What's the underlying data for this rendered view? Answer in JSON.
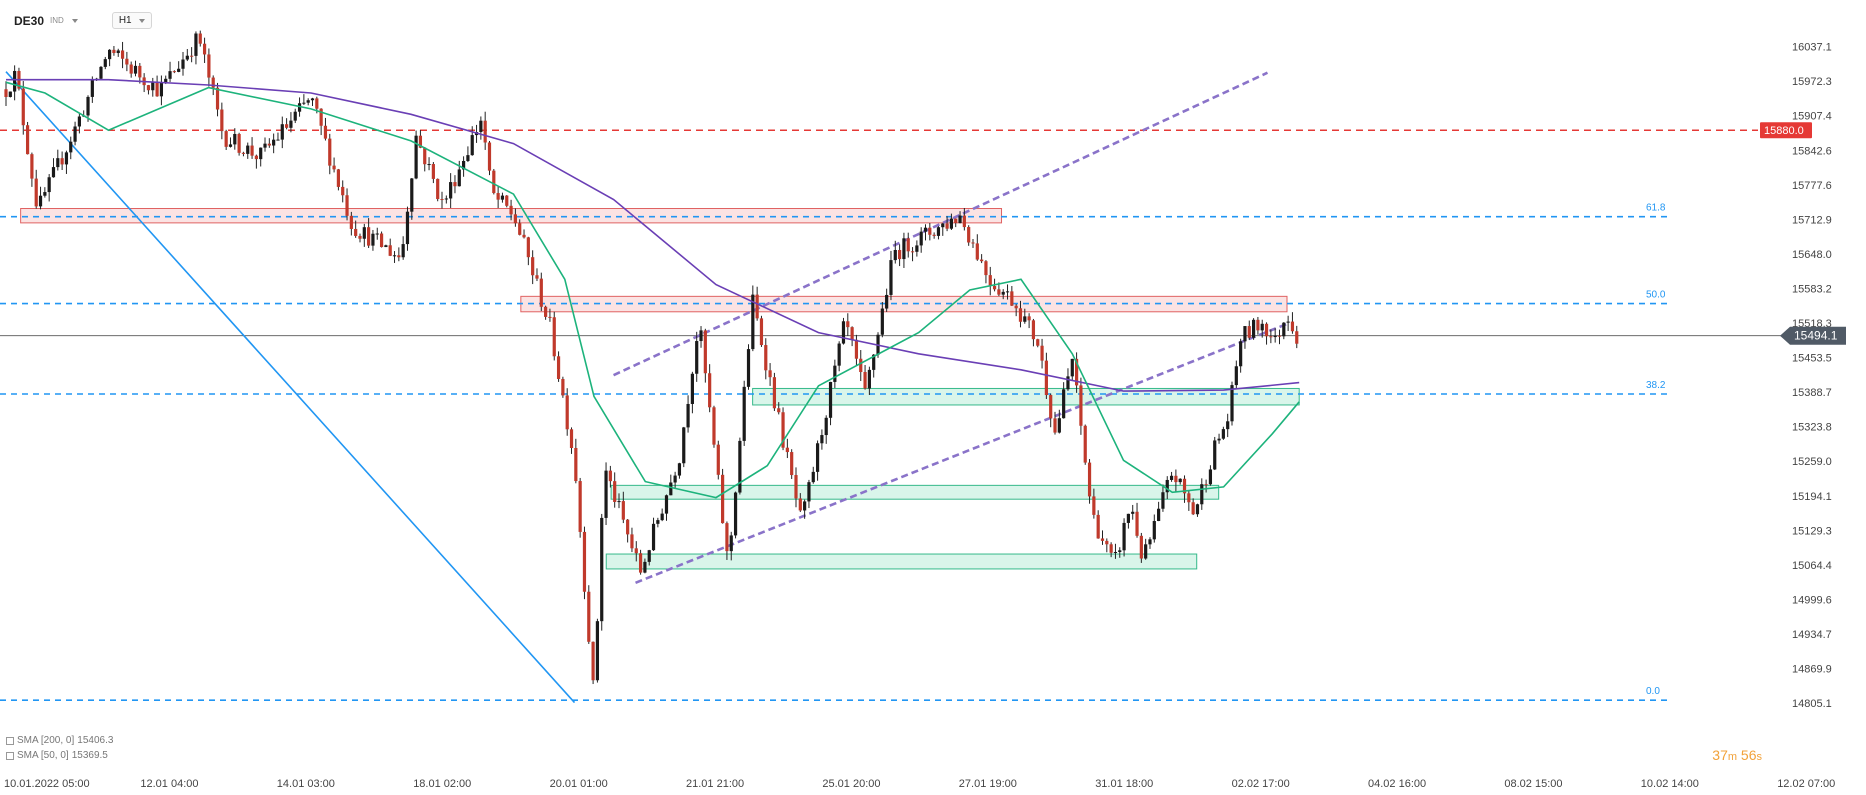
{
  "toolbar": {
    "symbol": "DE30",
    "symbol_type": "IND",
    "timeframe": "H1"
  },
  "indicators": [
    {
      "label": "SMA [200, 0]",
      "value": "15406.3",
      "color": "#6a3fb5"
    },
    {
      "label": "SMA [50, 0]",
      "value": "15369.5",
      "color": "#1db37c"
    }
  ],
  "timer": {
    "min": "37",
    "min_unit": "m",
    "sec": "56",
    "sec_unit": "s"
  },
  "colors": {
    "bull": "#1a1a1a",
    "bear": "#c0392b",
    "resistance_fill": "#fbe3e3",
    "resistance_stroke": "#e06262",
    "support_fill": "#d9f5ea",
    "support_stroke": "#35b98a",
    "fib": "#2196f3",
    "level": "#e53935",
    "channel": "#8a73c9",
    "trend": "#2196f3",
    "sma200": "#6a3fb5",
    "sma50": "#1db37c"
  },
  "chart_data": {
    "type": "candlestick",
    "instrument": "DE30",
    "timeframe": "H1",
    "y_ticks": [
      "16037.1",
      "15972.3",
      "15907.4",
      "15842.6",
      "15777.6",
      "15712.9",
      "15648.0",
      "15583.2",
      "15518.3",
      "15453.5",
      "15388.7",
      "15323.8",
      "15259.0",
      "15194.1",
      "15129.3",
      "15064.4",
      "14999.6",
      "14934.7",
      "14869.9",
      "14805.1"
    ],
    "ylim": [
      14805.1,
      16037.1
    ],
    "x_ticks": [
      "10.01.2022  05:00",
      "12.01  04:00",
      "14.01  03:00",
      "18.01  02:00",
      "20.01  01:00",
      "21.01  21:00",
      "25.01  20:00",
      "27.01  19:00",
      "31.01  18:00",
      "02.02  17:00",
      "04.02  16:00",
      "08.02  15:00",
      "10.02  14:00",
      "12.02  07:00"
    ],
    "last_price": "15494.1",
    "horizontal_level": {
      "value": 15880.0,
      "label": "15880.0"
    },
    "fibonacci": [
      {
        "label": "61.8",
        "value": 15717.6
      },
      {
        "label": "50.0",
        "value": 15554.5
      },
      {
        "label": "38.2",
        "value": 15384.6
      },
      {
        "label": "0.0",
        "value": 14809.5
      }
    ],
    "resistance_zones": [
      {
        "t0": 0.6,
        "t1": 40.8,
        "lo": 15706,
        "hi": 15733
      },
      {
        "t0": 21.1,
        "t1": 52.5,
        "lo": 15539,
        "hi": 15568
      }
    ],
    "support_zones": [
      {
        "t0": 30.6,
        "t1": 53.0,
        "lo": 15364,
        "hi": 15395
      },
      {
        "t0": 24.8,
        "t1": 49.7,
        "lo": 15187,
        "hi": 15213
      },
      {
        "t0": 24.6,
        "t1": 48.8,
        "lo": 15056,
        "hi": 15084
      }
    ],
    "trend_line": {
      "t0": 0.0,
      "p0": 15990,
      "t1": 23.3,
      "p1": 14805
    },
    "channel_lines": [
      {
        "t0": 25.8,
        "p0": 15030,
        "t1": 52.6,
        "p1": 15518
      },
      {
        "t0": 24.9,
        "p0": 15420,
        "t1": 51.7,
        "p1": 15988
      }
    ],
    "key_points": [
      {
        "t": 0.0,
        "p": 15957
      },
      {
        "t": 0.4,
        "p": 15985
      },
      {
        "t": 1.3,
        "p": 15730
      },
      {
        "t": 2.8,
        "p": 15880
      },
      {
        "t": 4.2,
        "p": 16030
      },
      {
        "t": 6.3,
        "p": 15955
      },
      {
        "t": 7.9,
        "p": 16055
      },
      {
        "t": 8.9,
        "p": 15870
      },
      {
        "t": 10.4,
        "p": 15830
      },
      {
        "t": 12.5,
        "p": 15940
      },
      {
        "t": 14.2,
        "p": 15700
      },
      {
        "t": 16.2,
        "p": 15640
      },
      {
        "t": 16.8,
        "p": 15870
      },
      {
        "t": 17.9,
        "p": 15740
      },
      {
        "t": 19.5,
        "p": 15905
      },
      {
        "t": 19.9,
        "p": 15760
      },
      {
        "t": 20.8,
        "p": 15720
      },
      {
        "t": 21.4,
        "p": 15640
      },
      {
        "t": 22.3,
        "p": 15510
      },
      {
        "t": 23.3,
        "p": 15260
      },
      {
        "t": 24.1,
        "p": 14810
      },
      {
        "t": 24.5,
        "p": 15250
      },
      {
        "t": 26.0,
        "p": 15050
      },
      {
        "t": 27.6,
        "p": 15270
      },
      {
        "t": 28.4,
        "p": 15520
      },
      {
        "t": 29.6,
        "p": 15060
      },
      {
        "t": 30.6,
        "p": 15560
      },
      {
        "t": 32.6,
        "p": 15140
      },
      {
        "t": 34.4,
        "p": 15520
      },
      {
        "t": 35.2,
        "p": 15380
      },
      {
        "t": 36.4,
        "p": 15650
      },
      {
        "t": 39.1,
        "p": 15720
      },
      {
        "t": 40.3,
        "p": 15600
      },
      {
        "t": 41.3,
        "p": 15560
      },
      {
        "t": 42.3,
        "p": 15480
      },
      {
        "t": 43.0,
        "p": 15310
      },
      {
        "t": 43.7,
        "p": 15450
      },
      {
        "t": 44.5,
        "p": 15160
      },
      {
        "t": 45.4,
        "p": 15060
      },
      {
        "t": 46.1,
        "p": 15180
      },
      {
        "t": 46.6,
        "p": 15070
      },
      {
        "t": 47.8,
        "p": 15240
      },
      {
        "t": 48.7,
        "p": 15160
      },
      {
        "t": 49.5,
        "p": 15280
      },
      {
        "t": 50.1,
        "p": 15340
      },
      {
        "t": 50.6,
        "p": 15490
      },
      {
        "t": 51.5,
        "p": 15520
      },
      {
        "t": 52.0,
        "p": 15480
      },
      {
        "t": 52.5,
        "p": 15540
      },
      {
        "t": 52.9,
        "p": 15494
      }
    ],
    "sma200_points": [
      {
        "t": 0.0,
        "p": 15975
      },
      {
        "t": 4.2,
        "p": 15975
      },
      {
        "t": 8.3,
        "p": 15965
      },
      {
        "t": 12.5,
        "p": 15950
      },
      {
        "t": 16.6,
        "p": 15910
      },
      {
        "t": 20.8,
        "p": 15855
      },
      {
        "t": 24.9,
        "p": 15750
      },
      {
        "t": 29.1,
        "p": 15590
      },
      {
        "t": 33.3,
        "p": 15500
      },
      {
        "t": 37.4,
        "p": 15460
      },
      {
        "t": 41.6,
        "p": 15430
      },
      {
        "t": 45.8,
        "p": 15390
      },
      {
        "t": 49.9,
        "p": 15392
      },
      {
        "t": 53.0,
        "p": 15406
      }
    ],
    "sma50_points": [
      {
        "t": 0.0,
        "p": 15970
      },
      {
        "t": 1.6,
        "p": 15950
      },
      {
        "t": 4.2,
        "p": 15880
      },
      {
        "t": 8.3,
        "p": 15960
      },
      {
        "t": 12.5,
        "p": 15920
      },
      {
        "t": 16.6,
        "p": 15860
      },
      {
        "t": 20.8,
        "p": 15760
      },
      {
        "t": 22.9,
        "p": 15600
      },
      {
        "t": 24.1,
        "p": 15380
      },
      {
        "t": 26.2,
        "p": 15220
      },
      {
        "t": 29.1,
        "p": 15190
      },
      {
        "t": 31.2,
        "p": 15250
      },
      {
        "t": 33.3,
        "p": 15400
      },
      {
        "t": 37.4,
        "p": 15500
      },
      {
        "t": 39.5,
        "p": 15580
      },
      {
        "t": 41.6,
        "p": 15600
      },
      {
        "t": 43.7,
        "p": 15460
      },
      {
        "t": 45.8,
        "p": 15260
      },
      {
        "t": 47.8,
        "p": 15200
      },
      {
        "t": 49.9,
        "p": 15210
      },
      {
        "t": 51.9,
        "p": 15310
      },
      {
        "t": 53.0,
        "p": 15370
      }
    ]
  }
}
